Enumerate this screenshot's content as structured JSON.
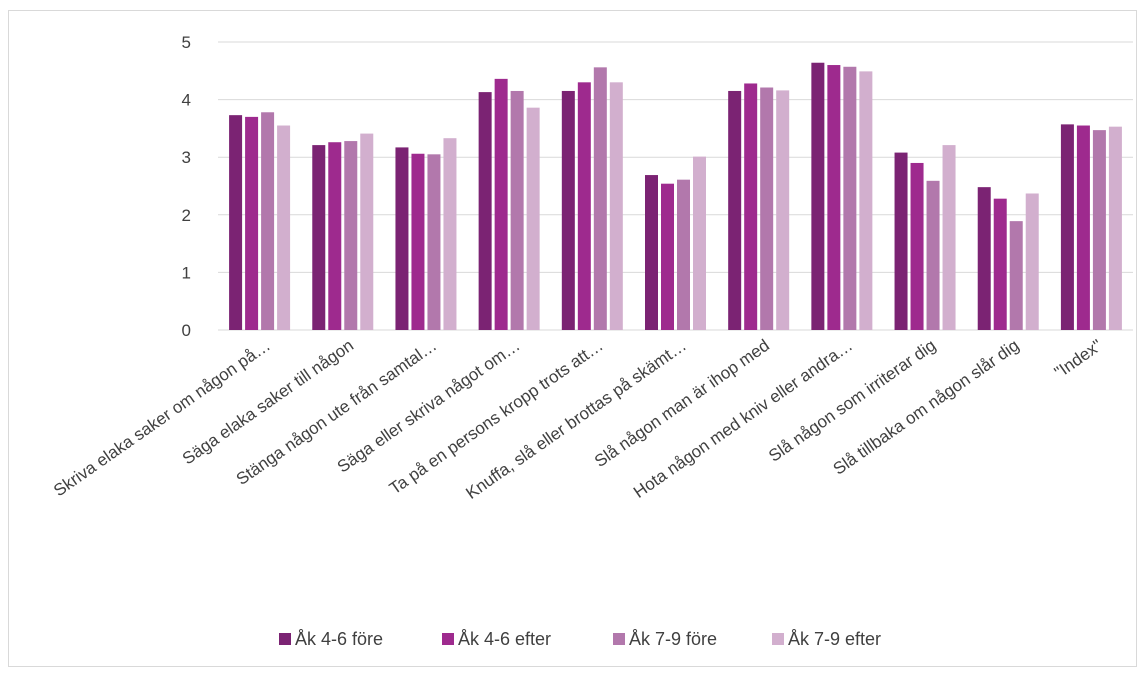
{
  "chart_data": {
    "type": "bar",
    "title": "",
    "xlabel": "",
    "ylabel": "",
    "ylim": [
      0,
      5
    ],
    "yticks": [
      0,
      1,
      2,
      3,
      4,
      5
    ],
    "grid": true,
    "legend_position": "bottom",
    "categories": [
      "Skriva elaka saker om någon på…",
      "Säga elaka saker till någon",
      "Stänga någon ute från samtal…",
      "Säga eller skriva något om…",
      "Ta på en persons kropp trots att…",
      "Knuffa, slå eller brottas på skämt…",
      "Slå någon man är ihop med",
      "Hota någon med kniv eller andra…",
      "Slå någon som irriterar dig",
      "Slå tillbaka om någon slår dig",
      "\"Index\""
    ],
    "series": [
      {
        "name": "Åk 4-6 före",
        "color": "#7B2373",
        "values": [
          3.73,
          3.21,
          3.17,
          4.13,
          4.15,
          2.69,
          4.15,
          4.64,
          3.08,
          2.48,
          3.57
        ]
      },
      {
        "name": "Åk 4-6 efter",
        "color": "#9E2A8E",
        "values": [
          3.7,
          3.26,
          3.06,
          4.36,
          4.3,
          2.54,
          4.28,
          4.6,
          2.9,
          2.28,
          3.55
        ]
      },
      {
        "name": "Åk 7-9 före",
        "color": "#B278AC",
        "values": [
          3.78,
          3.28,
          3.05,
          4.15,
          4.56,
          2.61,
          4.21,
          4.57,
          2.59,
          1.89,
          3.47
        ]
      },
      {
        "name": "Åk 7-9 efter",
        "color": "#D2AFCE",
        "values": [
          3.55,
          3.41,
          3.33,
          3.86,
          4.3,
          3.01,
          4.16,
          4.49,
          3.21,
          2.37,
          3.53
        ]
      }
    ]
  }
}
